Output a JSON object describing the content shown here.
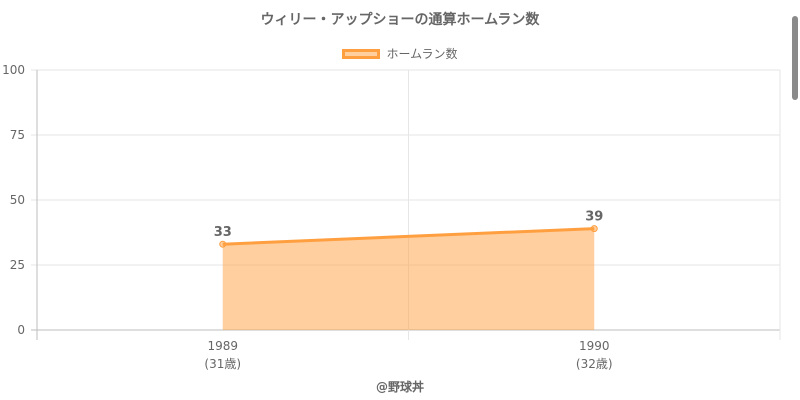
{
  "title": "ウィリー・アップショーの通算ホームラン数",
  "credit": "@野球丼",
  "colors": {
    "line": "#ff9f40",
    "fill": "rgba(255,159,64,0.5)",
    "grid": "#e6e6e6",
    "text": "#666666"
  },
  "chart_data": {
    "type": "area",
    "categories": [
      "1989",
      "1990"
    ],
    "sublabels": [
      "(31歳)",
      "(32歳)"
    ],
    "series": [
      {
        "name": "ホームラン数",
        "values": [
          33,
          39
        ]
      }
    ],
    "ylim": [
      0,
      100
    ],
    "yticks": [
      0,
      25,
      50,
      75,
      100
    ],
    "grid": true,
    "legend": "top-center"
  }
}
